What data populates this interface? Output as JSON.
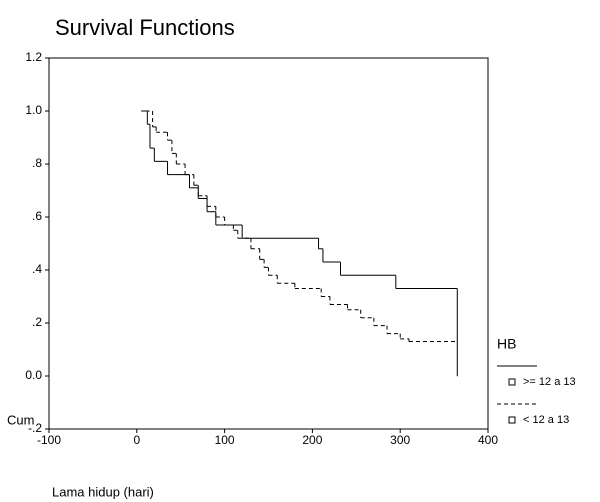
{
  "chart_data": {
    "type": "step",
    "title": "Survival Functions",
    "x_label": "Lama hidup (hari)",
    "y_label": "Cum",
    "legend_title": "HB",
    "legend": "right",
    "xlim": [
      -100,
      400
    ],
    "xticks": [
      -100,
      0,
      100,
      200,
      300,
      400
    ],
    "ylim": [
      -0.2,
      1.2
    ],
    "yticks": [
      {
        "value": -0.2,
        "label": "-.2"
      },
      {
        "value": 0,
        "label": "0.0"
      },
      {
        "value": 0.2,
        "label": ".2"
      },
      {
        "value": 0.4,
        "label": ".4"
      },
      {
        "value": 0.6,
        "label": ".6"
      },
      {
        "value": 0.8,
        "label": ".8"
      },
      {
        "value": 1,
        "label": "1.0"
      },
      {
        "value": 1.2,
        "label": "1.2"
      }
    ],
    "series": [
      {
        "name": ">= 12 a 13",
        "color": "#000000",
        "dash": "solid",
        "x": [
          5,
          12,
          15,
          20,
          35,
          60,
          70,
          80,
          90,
          120,
          207,
          212,
          232,
          295,
          365
        ],
        "values": [
          1.0,
          0.95,
          0.86,
          0.81,
          0.76,
          0.71,
          0.67,
          0.62,
          0.57,
          0.52,
          0.48,
          0.43,
          0.38,
          0.33,
          0.0
        ]
      },
      {
        "name": "< 12 a 13",
        "color": "#000000",
        "dash": "dashed",
        "x": [
          10,
          18,
          22,
          35,
          40,
          45,
          55,
          65,
          70,
          80,
          90,
          100,
          110,
          115,
          130,
          140,
          145,
          150,
          160,
          180,
          210,
          220,
          240,
          255,
          270,
          285,
          300,
          310,
          365
        ],
        "values": [
          1.0,
          0.94,
          0.92,
          0.89,
          0.84,
          0.8,
          0.76,
          0.72,
          0.68,
          0.64,
          0.6,
          0.57,
          0.55,
          0.52,
          0.48,
          0.44,
          0.41,
          0.38,
          0.35,
          0.33,
          0.3,
          0.27,
          0.25,
          0.22,
          0.19,
          0.16,
          0.14,
          0.13,
          0.13
        ]
      }
    ]
  }
}
